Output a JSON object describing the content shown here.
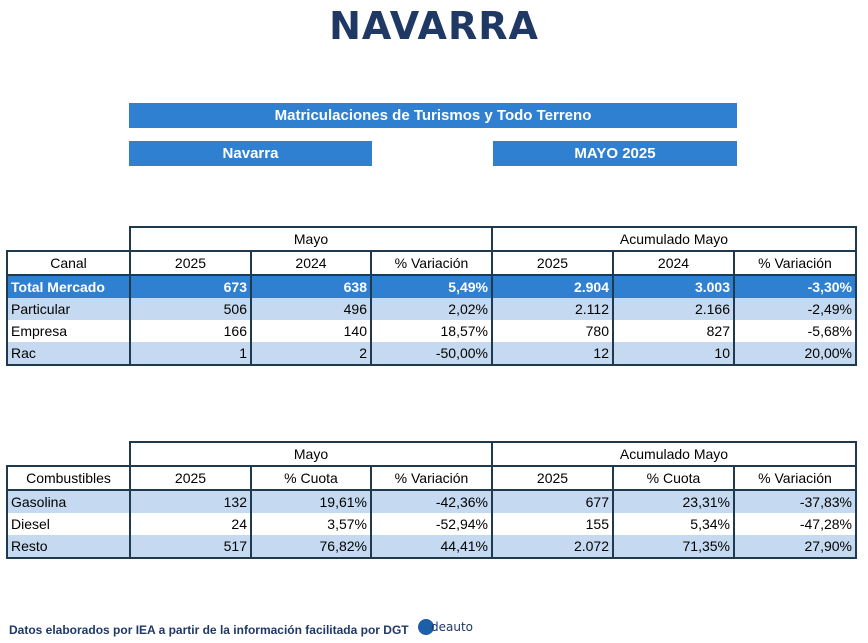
{
  "title": "NAVARRA",
  "banners": {
    "main": "Matriculaciones de Turismos y Todo Terreno",
    "region": "Navarra",
    "period": "MAYO 2025"
  },
  "table1": {
    "group_headers": [
      "Mayo",
      "Acumulado Mayo"
    ],
    "headers": [
      "Canal",
      "2025",
      "2024",
      "% Variación",
      "2025",
      "2024",
      "% Variación"
    ],
    "rows": [
      [
        "Total Mercado",
        "673",
        "638",
        "5,49%",
        "2.904",
        "3.003",
        "-3,30%"
      ],
      [
        "Particular",
        "506",
        "496",
        "2,02%",
        "2.112",
        "2.166",
        "-2,49%"
      ],
      [
        "Empresa",
        "166",
        "140",
        "18,57%",
        "780",
        "827",
        "-5,68%"
      ],
      [
        "Rac",
        "1",
        "2",
        "-50,00%",
        "12",
        "10",
        "20,00%"
      ]
    ]
  },
  "table2": {
    "group_headers": [
      "Mayo",
      "Acumulado Mayo"
    ],
    "headers": [
      "Combustibles",
      "2025",
      "% Cuota",
      "% Variación",
      "2025",
      "% Cuota",
      "% Variación"
    ],
    "rows": [
      [
        "Gasolina",
        "132",
        "19,61%",
        "-42,36%",
        "677",
        "23,31%",
        "-37,83%"
      ],
      [
        "Diesel",
        "24",
        "3,57%",
        "-52,94%",
        "155",
        "5,34%",
        "-47,28%"
      ],
      [
        "Resto",
        "517",
        "76,82%",
        "44,41%",
        "2.072",
        "71,35%",
        "27,90%"
      ]
    ]
  },
  "footer": "Datos elaborados por IEA a partir de la información facilitada por DGT",
  "logo_text": "deauto",
  "colors": {
    "accent": "#2f80d1",
    "light_row": "#c5daf0",
    "title": "#1f3864",
    "border": "#1f3a4f"
  }
}
